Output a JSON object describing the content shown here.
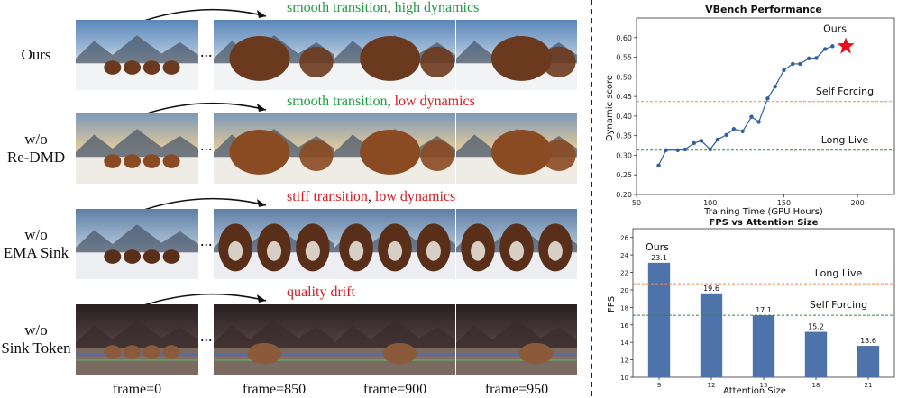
{
  "rows": [
    {
      "label_lines": [
        "Ours"
      ],
      "caption": [
        {
          "text": "smooth transition",
          "color": "green"
        },
        {
          "text": ", ",
          "color": "black"
        },
        {
          "text": "high dynamics",
          "color": "green"
        }
      ],
      "scene": "sunny"
    },
    {
      "label_lines": [
        "w/o",
        "Re-DMD"
      ],
      "caption": [
        {
          "text": "smooth transition",
          "color": "green"
        },
        {
          "text": ", ",
          "color": "black"
        },
        {
          "text": "low dynamics",
          "color": "red"
        }
      ],
      "scene": "golden"
    },
    {
      "label_lines": [
        "w/o",
        "EMA Sink"
      ],
      "caption": [
        {
          "text": "stiff transition",
          "color": "red"
        },
        {
          "text": ", ",
          "color": "black"
        },
        {
          "text": "low dynamics",
          "color": "red"
        }
      ],
      "scene": "stiff"
    },
    {
      "label_lines": [
        "w/o",
        "Sink Token"
      ],
      "caption": [
        {
          "text": "quality drift",
          "color": "red"
        }
      ],
      "scene": "drift"
    }
  ],
  "frame_labels": [
    "frame=0",
    "frame=850",
    "frame=900",
    "frame=950"
  ],
  "ellipsis": "...",
  "chart_data": [
    {
      "type": "line",
      "title": "VBench Performance",
      "xlabel": "Training Time (GPU Hours)",
      "ylabel": "Dynamic score",
      "xlim": [
        50,
        225
      ],
      "ylim": [
        0.2,
        0.65
      ],
      "xticks": [
        50,
        100,
        150,
        200
      ],
      "yticks": [
        0.2,
        0.25,
        0.3,
        0.35,
        0.4,
        0.45,
        0.5,
        0.55,
        0.6
      ],
      "series": [
        {
          "x": [
            65,
            70,
            78,
            83,
            89,
            94,
            100,
            105,
            111,
            116,
            122,
            128,
            133,
            139,
            144,
            150,
            156,
            161,
            167,
            172,
            178,
            183
          ],
          "y": [
            0.274,
            0.313,
            0.313,
            0.315,
            0.331,
            0.337,
            0.315,
            0.34,
            0.352,
            0.367,
            0.361,
            0.398,
            0.385,
            0.445,
            0.475,
            0.517,
            0.533,
            0.533,
            0.547,
            0.548,
            0.571,
            0.578
          ],
          "color": "#2f5fa0"
        }
      ],
      "star": {
        "x": 192,
        "y": 0.578,
        "label": "Ours",
        "color": "#e8101a"
      },
      "reference_lines": [
        {
          "label": "Self Forcing",
          "y": 0.437,
          "color": "#f08a4b"
        },
        {
          "label": "Long Live",
          "y": 0.313,
          "color": "#2e8b3a"
        }
      ],
      "grid": false
    },
    {
      "type": "bar",
      "title": "FPS vs Attention Size",
      "xlabel": "Attention Size",
      "ylabel": "FPS",
      "categories": [
        "9",
        "12",
        "15",
        "18",
        "21"
      ],
      "values": [
        23.1,
        19.6,
        17.1,
        15.2,
        13.6
      ],
      "value_labels": [
        "23.1",
        "19.6",
        "17.1",
        "15.2",
        "13.6"
      ],
      "ylim": [
        10,
        27
      ],
      "yticks": [
        10,
        12,
        14,
        16,
        18,
        20,
        22,
        24,
        26
      ],
      "bar_color": "#4e73aa",
      "annotation": "Ours",
      "reference_lines": [
        {
          "label": "Long Live",
          "y": 20.7,
          "color": "#f08a4b"
        },
        {
          "label": "Self Forcing",
          "y": 17.1,
          "color": "#2e8b3a"
        }
      ],
      "grid": false
    }
  ]
}
